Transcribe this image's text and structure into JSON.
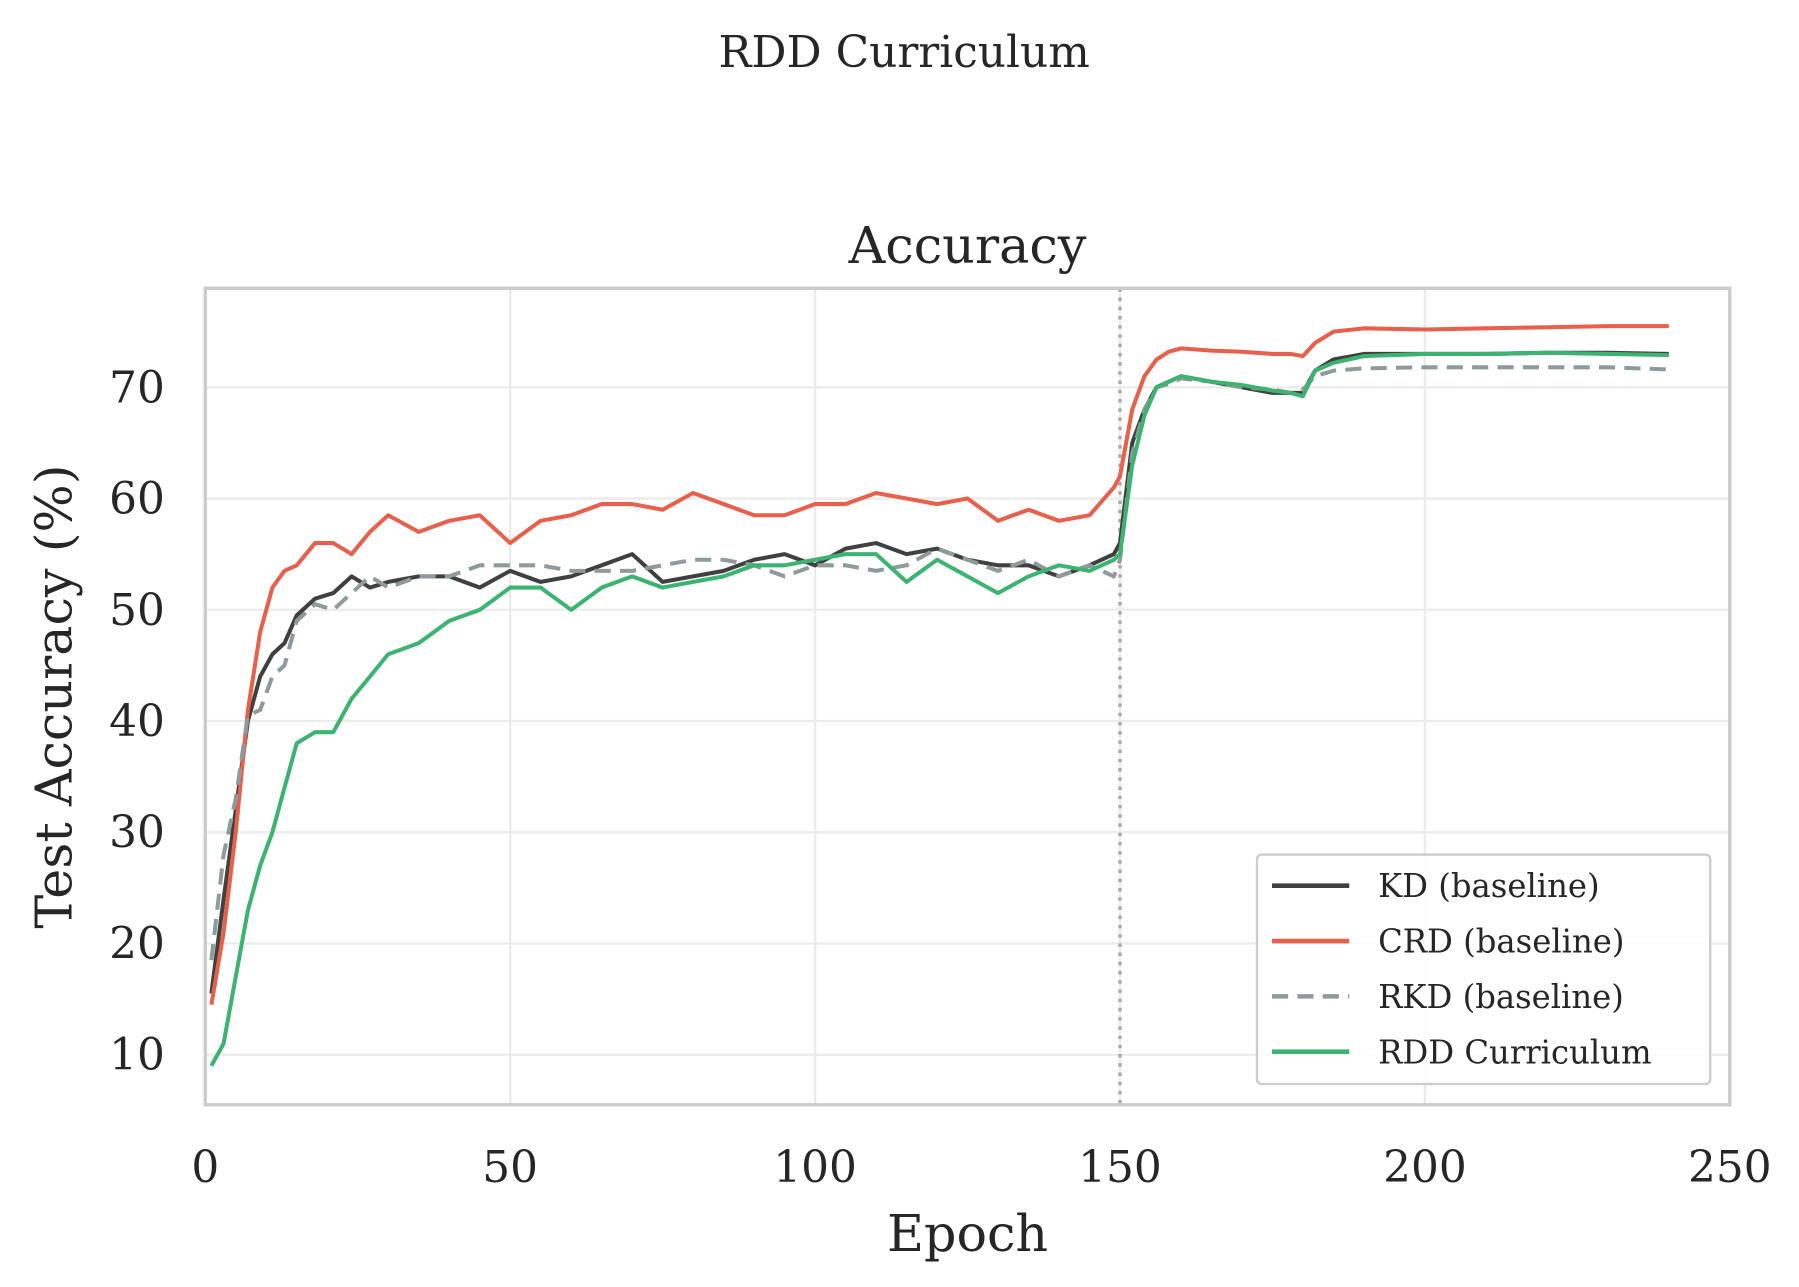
{
  "chart_data": {
    "type": "line",
    "suptitle": "RDD Curriculum",
    "title": "Accuracy",
    "xlabel": "Epoch",
    "ylabel": "Test Accuracy (%)",
    "xlim": [
      0,
      250
    ],
    "ylim": [
      5.5,
      78.9
    ],
    "xticks": [
      0,
      50,
      100,
      150,
      200,
      250
    ],
    "yticks": [
      10,
      20,
      30,
      40,
      50,
      60,
      70
    ],
    "grid": true,
    "legend_position": "lower-right",
    "vline": {
      "x": 150,
      "style": "dotted",
      "color": "#aaaaaa"
    },
    "x": [
      1,
      3,
      5,
      7,
      9,
      11,
      13,
      15,
      18,
      21,
      24,
      27,
      30,
      35,
      40,
      45,
      50,
      55,
      60,
      65,
      70,
      75,
      80,
      85,
      90,
      95,
      100,
      105,
      110,
      115,
      120,
      125,
      130,
      135,
      140,
      145,
      149,
      150,
      152,
      154,
      156,
      158,
      160,
      165,
      170,
      175,
      178,
      180,
      182,
      185,
      190,
      200,
      210,
      220,
      230,
      240
    ],
    "series": [
      {
        "name": "KD (baseline)",
        "color": "#404040",
        "dash": "solid",
        "values": [
          15.5,
          24,
          32,
          40,
          44,
          46,
          47,
          49.5,
          51,
          51.5,
          53,
          52,
          52.5,
          53,
          53,
          52,
          53.5,
          52.5,
          53,
          54,
          55,
          52.5,
          53,
          53.5,
          54.5,
          55,
          54,
          55.5,
          56,
          55,
          55.5,
          54.5,
          54,
          54,
          53,
          54,
          55,
          56,
          65,
          68,
          70,
          70.5,
          71,
          70.5,
          70,
          69.5,
          69.5,
          69.5,
          71.5,
          72.5,
          73,
          73,
          73,
          73.1,
          73.1,
          73
        ]
      },
      {
        "name": "CRD (baseline)",
        "color": "#e8604c",
        "dash": "solid",
        "values": [
          14.5,
          21,
          30,
          41,
          48,
          52,
          53.5,
          54,
          56,
          56,
          55,
          57,
          58.5,
          57,
          58,
          58.5,
          56,
          58,
          58.5,
          59.5,
          59.5,
          59,
          60.5,
          59.5,
          58.5,
          58.5,
          59.5,
          59.5,
          60.5,
          60,
          59.5,
          60,
          58,
          59,
          58,
          58.5,
          61,
          62,
          68,
          71,
          72.5,
          73.2,
          73.5,
          73.3,
          73.2,
          73,
          73,
          72.8,
          74,
          75,
          75.3,
          75.2,
          75.3,
          75.4,
          75.5,
          75.5
        ]
      },
      {
        "name": "RKD (baseline)",
        "color": "#8e9a9b",
        "dash": "dashed",
        "values": [
          18.5,
          28,
          33,
          40.5,
          41,
          44,
          45,
          49,
          50.5,
          50,
          51.5,
          53,
          52,
          53,
          53,
          54,
          54,
          54,
          53.5,
          53.5,
          53.5,
          54,
          54.5,
          54.5,
          54,
          53,
          54,
          54,
          53.5,
          54,
          55.5,
          54.5,
          53.5,
          54.5,
          53,
          54,
          53,
          54.5,
          64,
          68,
          70,
          70.3,
          70.8,
          70.5,
          70,
          69.8,
          69.5,
          69.8,
          71,
          71.5,
          71.7,
          71.8,
          71.8,
          71.8,
          71.8,
          71.6
        ]
      },
      {
        "name": "RDD Curriculum",
        "color": "#3cb371",
        "dash": "solid",
        "values": [
          9,
          11,
          17,
          23,
          27,
          30,
          34,
          38,
          39,
          39,
          42,
          44,
          46,
          47,
          49,
          50,
          52,
          52,
          50,
          52,
          53,
          52,
          52.5,
          53,
          54,
          54,
          54.5,
          55,
          55,
          52.5,
          54.5,
          53,
          51.5,
          53,
          54,
          53.5,
          54.5,
          55,
          63,
          67.5,
          70,
          70.5,
          71,
          70.5,
          70.2,
          69.7,
          69.5,
          69.2,
          71.5,
          72.2,
          72.8,
          73,
          73,
          73.1,
          73,
          72.9
        ]
      }
    ]
  }
}
